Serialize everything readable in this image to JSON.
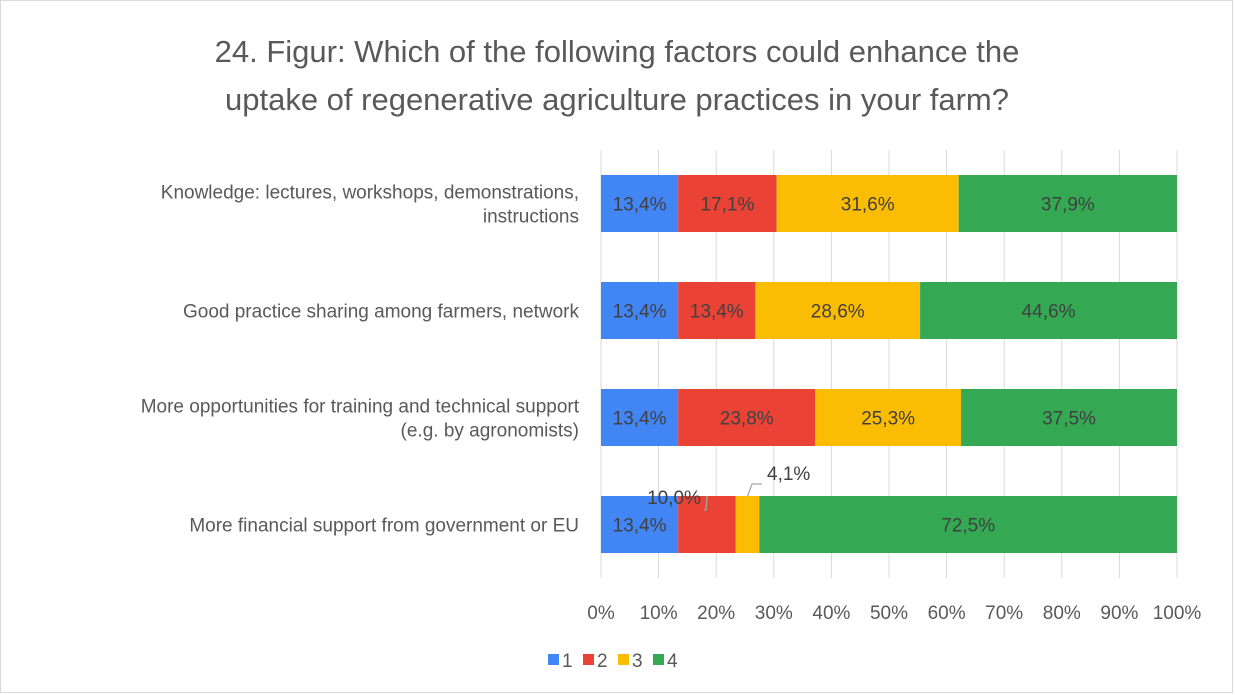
{
  "chart_data": {
    "type": "bar",
    "orientation": "horizontal",
    "stacked": "percent",
    "title_lines": [
      "24. Figur: Which of the following factors could enhance the",
      "uptake of regenerative agriculture practices in your farm?"
    ],
    "categories": [
      [
        "Knowledge: lectures, workshops, demonstrations,",
        "instructions"
      ],
      [
        "Good practice sharing among farmers, network"
      ],
      [
        "More opportunities for training and technical support",
        "(e.g. by agronomists)"
      ],
      [
        "More financial support from government or EU"
      ]
    ],
    "series": [
      {
        "name": "1",
        "color": "#4285f4",
        "values": [
          13.4,
          13.4,
          13.4,
          13.4
        ]
      },
      {
        "name": "2",
        "color": "#ea4335",
        "values": [
          17.1,
          13.4,
          23.8,
          10.0
        ]
      },
      {
        "name": "3",
        "color": "#fbbc04",
        "values": [
          31.6,
          28.6,
          25.3,
          4.1
        ]
      },
      {
        "name": "4",
        "color": "#34a853",
        "values": [
          37.9,
          44.6,
          37.5,
          72.5
        ]
      }
    ],
    "data_labels": [
      [
        "13,4%",
        "17,1%",
        "31,6%",
        "37,9%"
      ],
      [
        "13,4%",
        "13,4%",
        "28,6%",
        "44,6%"
      ],
      [
        "13,4%",
        "23,8%",
        "25,3%",
        "37,5%"
      ],
      [
        "13,4%",
        "10,0%",
        "4,1%",
        "72,5%"
      ]
    ],
    "callout_labels": [
      {
        "category_index": 3,
        "series_index": 1
      },
      {
        "category_index": 3,
        "series_index": 2
      }
    ],
    "xlim": [
      0,
      100
    ],
    "xticks": [
      "0%",
      "10%",
      "20%",
      "30%",
      "40%",
      "50%",
      "60%",
      "70%",
      "80%",
      "90%",
      "100%"
    ],
    "grid": true,
    "legend_position": "bottom"
  }
}
